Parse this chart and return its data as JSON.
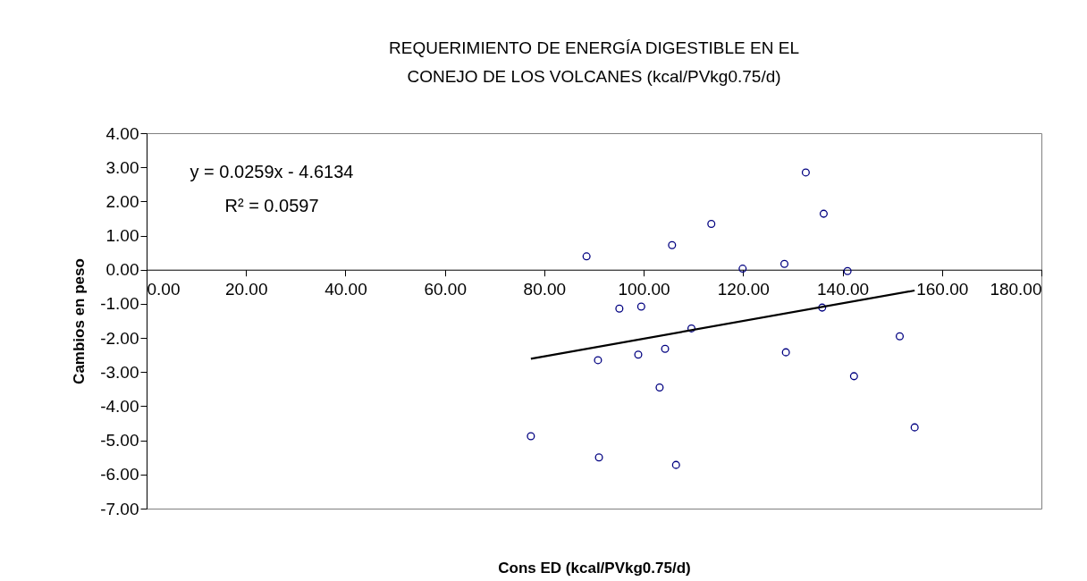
{
  "chart_data": {
    "type": "scatter",
    "title": "REQUERIMIENTO DE ENERGÍA DIGESTIBLE EN EL CONEJO DE LOS VOLCANES (kcal/PVkg0.75/d)",
    "xlabel": "Cons ED (kcal/PVkg0.75/d)",
    "ylabel": "Cambios en peso",
    "annotations": [
      "y = 0.0259x - 4.6134",
      "R² = 0.0597"
    ],
    "series": [
      {
        "color": "#000080",
        "marker": "circle",
        "x": [
          88.5,
          105.7,
          113.6,
          119.9,
          128.3,
          132.6,
          136.2,
          141.0,
          95.1,
          99.5,
          135.9,
          109.6,
          90.8,
          98.9,
          104.3,
          128.6,
          151.5,
          103.2,
          142.3,
          77.3,
          154.5,
          91.0,
          106.5
        ],
        "values": [
          0.39,
          0.72,
          1.34,
          0.03,
          0.17,
          2.85,
          1.64,
          -0.04,
          -1.14,
          -1.08,
          -1.11,
          -1.72,
          -2.65,
          -2.49,
          -2.32,
          -2.42,
          -1.95,
          -3.45,
          -3.12,
          -4.88,
          -4.62,
          -5.5,
          -5.72
        ]
      },
      {
        "type": "line",
        "marker": "none",
        "color": "#000000",
        "x": [
          77.3,
          154.5
        ],
        "values": [
          -2.61,
          -0.61
        ]
      }
    ],
    "xlim": [
      0,
      180
    ],
    "xticks": [
      {
        "value": 0,
        "label": "0.00"
      },
      {
        "value": 20,
        "label": "20.00"
      },
      {
        "value": 40,
        "label": "40.00"
      },
      {
        "value": 60,
        "label": "60.00"
      },
      {
        "value": 80,
        "label": "80.00"
      },
      {
        "value": 100,
        "label": "100.00"
      },
      {
        "value": 120,
        "label": "120.00"
      },
      {
        "value": 140,
        "label": "140.00"
      },
      {
        "value": 160,
        "label": "160.00"
      },
      {
        "value": 180,
        "label": "180.00"
      }
    ],
    "ylim": [
      -7,
      4
    ],
    "yticks": [
      {
        "value": -7,
        "label": "-7.00"
      },
      {
        "value": -6,
        "label": "-6.00"
      },
      {
        "value": -5,
        "label": "-5.00"
      },
      {
        "value": -4,
        "label": "-4.00"
      },
      {
        "value": -3,
        "label": "-3.00"
      },
      {
        "value": -2,
        "label": "-2.00"
      },
      {
        "value": -1,
        "label": "-1.00"
      },
      {
        "value": 0,
        "label": "0.00"
      },
      {
        "value": 1,
        "label": "1.00"
      },
      {
        "value": 2,
        "label": "2.00"
      },
      {
        "value": 3,
        "label": "3.00"
      },
      {
        "value": 4,
        "label": "4.00"
      }
    ],
    "grid": false,
    "line_style": "solid"
  }
}
